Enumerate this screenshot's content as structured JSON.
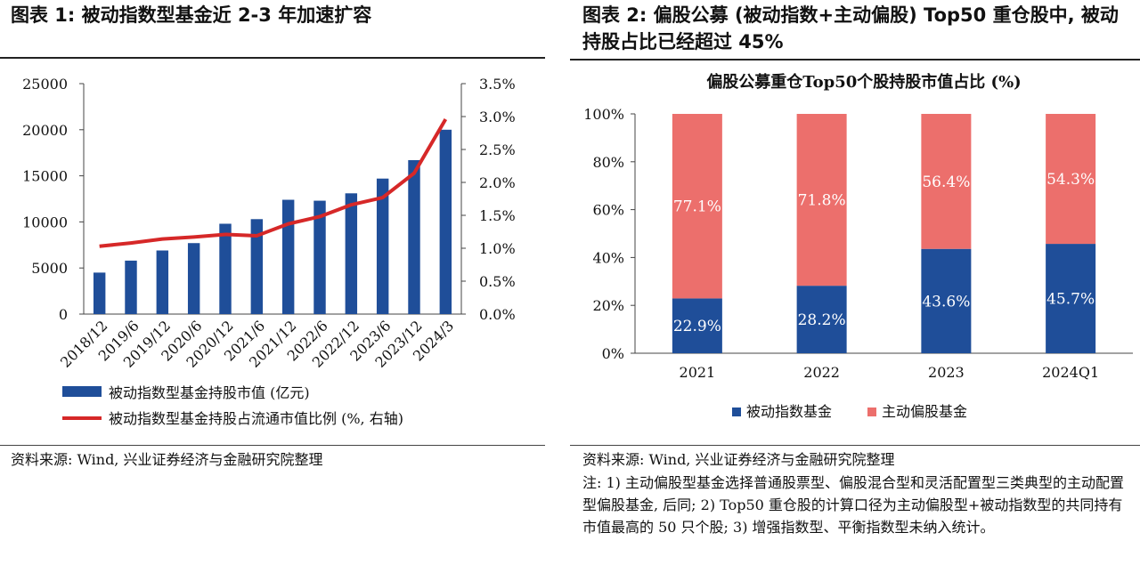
{
  "left": {
    "figure_title": "图表 1:  被动指数型基金近 2-3 年加速扩容",
    "source": "资料来源: Wind, 兴业证券经济与金融研究院整理"
  },
  "right": {
    "figure_title": "图表 2:  偏股公募 (被动指数+主动偏股) Top50 重仓股中, 被动持股占比已经超过 45%",
    "source": "资料来源: Wind, 兴业证券经济与金融研究院整理",
    "note": "注: 1) 主动偏股型基金选择普通股票型、偏股混合型和灵活配置型三类典型的主动配置型偏股基金, 后同; 2) Top50 重仓股的计算口径为主动偏股型+被动指数型的共同持有市值最高的 50 只个股; 3) 增强指数型、平衡指数型未纳入统计。"
  },
  "colors": {
    "bar_blue": "#1f4e99",
    "line_red": "#d62828",
    "stack_red": "#ec6f6c"
  },
  "chart_data": [
    {
      "type": "bar+line",
      "title": "",
      "categories": [
        "2018/12",
        "2019/6",
        "2019/12",
        "2020/6",
        "2020/12",
        "2021/6",
        "2021/12",
        "2022/6",
        "2022/12",
        "2023/6",
        "2023/12",
        "2024/3"
      ],
      "series": [
        {
          "name": "被动指数型基金持股市值 (亿元)",
          "type": "bar",
          "axis": "left",
          "values": [
            4500,
            5800,
            6900,
            7700,
            9800,
            10300,
            12400,
            12300,
            13100,
            14700,
            16700,
            20000
          ]
        },
        {
          "name": "被动指数型基金持股占流通市值比例 (%, 右轴)",
          "type": "line",
          "axis": "right",
          "values": [
            1.03,
            1.08,
            1.14,
            1.17,
            1.21,
            1.19,
            1.37,
            1.48,
            1.66,
            1.77,
            2.14,
            2.96
          ]
        }
      ],
      "y_left": {
        "lim": [
          0,
          25000
        ],
        "ticks": [
          "0",
          "5000",
          "10000",
          "15000",
          "20000",
          "25000"
        ]
      },
      "y_right": {
        "lim": [
          0,
          3.5
        ],
        "ticks": [
          "0.0%",
          "0.5%",
          "1.0%",
          "1.5%",
          "2.0%",
          "2.5%",
          "3.0%",
          "3.5%"
        ]
      },
      "legend_position": "bottom"
    },
    {
      "type": "stacked-bar",
      "title": "偏股公募重仓Top50个股持股市值占比 (%)",
      "categories": [
        "2021",
        "2022",
        "2023",
        "2024Q1"
      ],
      "series": [
        {
          "name": "被动指数基金",
          "values": [
            22.9,
            28.2,
            43.6,
            45.7
          ],
          "labels": [
            "22.9%",
            "28.2%",
            "43.6%",
            "45.7%"
          ]
        },
        {
          "name": "主动偏股基金",
          "values": [
            77.1,
            71.8,
            56.4,
            54.3
          ],
          "labels": [
            "77.1%",
            "71.8%",
            "56.4%",
            "54.3%"
          ]
        }
      ],
      "ylim": [
        0,
        100
      ],
      "y_ticks": [
        "0%",
        "20%",
        "40%",
        "60%",
        "80%",
        "100%"
      ],
      "legend_position": "bottom"
    }
  ]
}
